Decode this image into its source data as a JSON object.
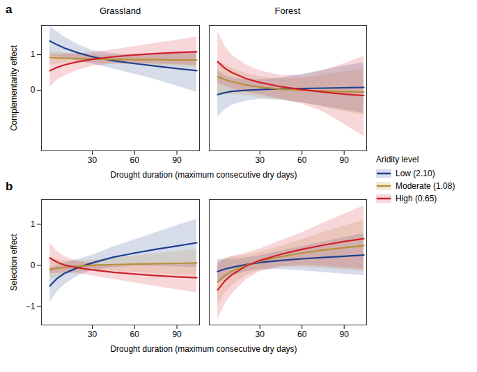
{
  "chart_data": [
    {
      "type": "line",
      "panel": "a",
      "title": "Grassland",
      "ylabel": "Complementarity effect",
      "xlabel": "Drought duration (maximum consecutive dry days)",
      "legend": "right",
      "legend_title": "Aridity level",
      "grid": false,
      "xlim": [
        -6,
        106
      ],
      "xticks": [
        30,
        60,
        90
      ],
      "ylim": [
        -1.7,
        1.82
      ],
      "yticks": [
        0,
        1
      ],
      "x": [
        0,
        5,
        10,
        20,
        30,
        45,
        60,
        75,
        90,
        104
      ],
      "series": [
        {
          "name": "Low (2.10)",
          "color": "#1f3f8f",
          "values": [
            1.38,
            1.28,
            1.19,
            1.05,
            0.94,
            0.83,
            0.75,
            0.68,
            0.61,
            0.55
          ],
          "lower": [
            0.97,
            0.94,
            0.9,
            0.83,
            0.74,
            0.6,
            0.45,
            0.3,
            0.12,
            -0.05
          ],
          "upper": [
            1.8,
            1.65,
            1.5,
            1.28,
            1.12,
            1.03,
            1.0,
            1.02,
            1.06,
            1.1
          ]
        },
        {
          "name": "Moderate (1.08)",
          "color": "#b8903a",
          "values": [
            0.92,
            0.91,
            0.9,
            0.89,
            0.88,
            0.87,
            0.86,
            0.86,
            0.85,
            0.85
          ],
          "lower": [
            0.72,
            0.74,
            0.75,
            0.77,
            0.77,
            0.75,
            0.72,
            0.69,
            0.66,
            0.63
          ],
          "upper": [
            1.1,
            1.08,
            1.05,
            1.01,
            0.99,
            0.99,
            1.0,
            1.02,
            1.04,
            1.07
          ]
        },
        {
          "name": "High (0.65)",
          "color": "#d0202a",
          "values": [
            0.55,
            0.64,
            0.71,
            0.8,
            0.87,
            0.94,
            0.99,
            1.03,
            1.06,
            1.08
          ],
          "lower": [
            0.1,
            0.28,
            0.4,
            0.57,
            0.68,
            0.74,
            0.75,
            0.74,
            0.72,
            0.7
          ],
          "upper": [
            1.0,
            1.0,
            1.02,
            1.03,
            1.06,
            1.14,
            1.23,
            1.32,
            1.41,
            1.5
          ]
        }
      ]
    },
    {
      "type": "line",
      "title": "Forest",
      "tick_labels": "x",
      "grid": false,
      "xlim": [
        -6,
        106
      ],
      "xticks": [
        30,
        60,
        90
      ],
      "ylim": [
        -1.7,
        1.82
      ],
      "x": [
        0,
        5,
        10,
        20,
        30,
        45,
        60,
        75,
        90,
        104
      ],
      "series": [
        {
          "name": "Low (2.10)",
          "color": "#1f3f8f",
          "values": [
            -0.12,
            -0.07,
            -0.03,
            0.0,
            0.02,
            0.04,
            0.05,
            0.06,
            0.07,
            0.08
          ],
          "lower": [
            -0.75,
            -0.55,
            -0.42,
            -0.3,
            -0.25,
            -0.27,
            -0.35,
            -0.45,
            -0.55,
            -0.65
          ],
          "upper": [
            0.55,
            0.42,
            0.35,
            0.3,
            0.3,
            0.35,
            0.45,
            0.57,
            0.68,
            0.78
          ]
        },
        {
          "name": "Moderate (1.08)",
          "color": "#b8903a",
          "values": [
            0.38,
            0.3,
            0.24,
            0.15,
            0.09,
            0.03,
            0.0,
            -0.02,
            -0.04,
            -0.05
          ],
          "lower": [
            -0.1,
            -0.1,
            -0.12,
            -0.15,
            -0.2,
            -0.27,
            -0.35,
            -0.47,
            -0.6,
            -0.7
          ],
          "upper": [
            0.85,
            0.72,
            0.62,
            0.47,
            0.38,
            0.32,
            0.35,
            0.42,
            0.52,
            0.6
          ]
        },
        {
          "name": "High (0.65)",
          "color": "#d0202a",
          "values": [
            0.8,
            0.62,
            0.5,
            0.33,
            0.22,
            0.1,
            0.02,
            -0.05,
            -0.11,
            -0.15
          ],
          "lower": [
            0.2,
            0.12,
            0.05,
            -0.05,
            -0.12,
            -0.25,
            -0.38,
            -0.6,
            -0.95,
            -1.3
          ],
          "upper": [
            1.65,
            1.25,
            1.0,
            0.72,
            0.55,
            0.42,
            0.42,
            0.55,
            0.75,
            0.95
          ]
        }
      ]
    },
    {
      "type": "line",
      "panel": "b",
      "ylabel": "Selection effect",
      "xlabel": "Drought duration (maximum consecutive dry days)",
      "grid": false,
      "xlim": [
        -6,
        106
      ],
      "xticks": [
        30,
        60,
        90
      ],
      "ylim": [
        -1.45,
        1.6
      ],
      "yticks": [
        {
          "value": -1,
          "label": "−1"
        },
        0,
        1
      ],
      "x": [
        0,
        5,
        10,
        20,
        30,
        45,
        60,
        75,
        90,
        104
      ],
      "series": [
        {
          "name": "Low (2.10)",
          "color": "#1f3f8f",
          "values": [
            -0.5,
            -0.32,
            -0.2,
            -0.05,
            0.06,
            0.2,
            0.3,
            0.39,
            0.47,
            0.55
          ],
          "lower": [
            -0.9,
            -0.65,
            -0.47,
            -0.25,
            -0.12,
            -0.05,
            -0.02,
            -0.02,
            -0.03,
            -0.05
          ],
          "upper": [
            -0.05,
            0.0,
            0.06,
            0.15,
            0.25,
            0.45,
            0.62,
            0.8,
            0.97,
            1.12
          ]
        },
        {
          "name": "Moderate (1.08)",
          "color": "#b8903a",
          "values": [
            -0.1,
            -0.07,
            -0.05,
            -0.02,
            0.0,
            0.02,
            0.03,
            0.04,
            0.05,
            0.06
          ],
          "lower": [
            -0.35,
            -0.28,
            -0.22,
            -0.15,
            -0.13,
            -0.14,
            -0.17,
            -0.2,
            -0.23,
            -0.25
          ],
          "upper": [
            0.15,
            0.13,
            0.12,
            0.11,
            0.13,
            0.18,
            0.23,
            0.29,
            0.34,
            0.4
          ]
        },
        {
          "name": "High (0.65)",
          "color": "#d0202a",
          "values": [
            0.18,
            0.08,
            0.01,
            -0.06,
            -0.11,
            -0.17,
            -0.21,
            -0.25,
            -0.28,
            -0.3
          ],
          "lower": [
            -0.2,
            -0.19,
            -0.18,
            -0.2,
            -0.25,
            -0.34,
            -0.42,
            -0.51,
            -0.59,
            -0.66
          ],
          "upper": [
            0.55,
            0.35,
            0.22,
            0.1,
            0.04,
            0.0,
            -0.01,
            0.01,
            0.03,
            0.05
          ]
        }
      ]
    },
    {
      "type": "line",
      "tick_labels": "x",
      "grid": false,
      "xlim": [
        -6,
        106
      ],
      "xticks": [
        30,
        60,
        90
      ],
      "ylim": [
        -1.45,
        1.6
      ],
      "x": [
        0,
        5,
        10,
        20,
        30,
        45,
        60,
        75,
        90,
        104
      ],
      "series": [
        {
          "name": "Low (2.10)",
          "color": "#1f3f8f",
          "values": [
            -0.15,
            -0.09,
            -0.05,
            0.02,
            0.07,
            0.12,
            0.16,
            0.19,
            0.22,
            0.25
          ],
          "lower": [
            -0.45,
            -0.33,
            -0.26,
            -0.15,
            -0.1,
            -0.1,
            -0.13,
            -0.17,
            -0.21,
            -0.25
          ],
          "upper": [
            0.15,
            0.15,
            0.15,
            0.18,
            0.24,
            0.35,
            0.46,
            0.57,
            0.68,
            0.78
          ]
        },
        {
          "name": "Moderate (1.08)",
          "color": "#b8903a",
          "values": [
            -0.4,
            -0.25,
            -0.14,
            0.0,
            0.1,
            0.21,
            0.3,
            0.37,
            0.43,
            0.48
          ],
          "lower": [
            -0.95,
            -0.68,
            -0.5,
            -0.25,
            -0.12,
            -0.04,
            -0.04,
            -0.07,
            -0.11,
            -0.15
          ],
          "upper": [
            0.1,
            0.17,
            0.22,
            0.25,
            0.32,
            0.47,
            0.63,
            0.8,
            0.96,
            1.1
          ]
        },
        {
          "name": "High (0.65)",
          "color": "#d0202a",
          "values": [
            -0.6,
            -0.38,
            -0.23,
            -0.02,
            0.12,
            0.27,
            0.39,
            0.49,
            0.58,
            0.65
          ],
          "lower": [
            -1.3,
            -0.95,
            -0.7,
            -0.35,
            -0.15,
            -0.03,
            0.0,
            -0.02,
            -0.06,
            -0.1
          ],
          "upper": [
            0.05,
            0.15,
            0.22,
            0.3,
            0.4,
            0.6,
            0.8,
            1.03,
            1.25,
            1.45
          ]
        }
      ]
    }
  ]
}
